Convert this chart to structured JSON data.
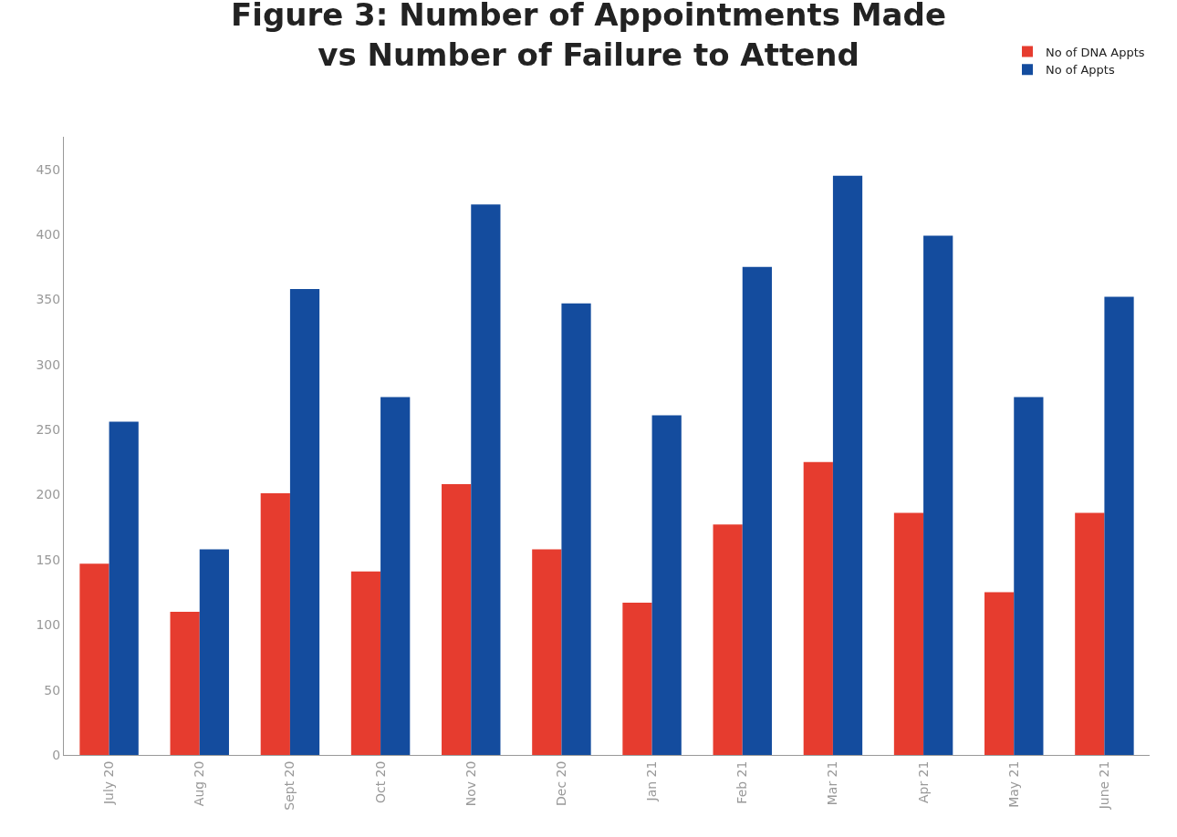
{
  "chart_data": {
    "type": "bar",
    "title": "Figure 3: Number of Appointments Made\nvs Number of Failure to Attend",
    "categories": [
      "July 20",
      "Aug 20",
      "Sept 20",
      "Oct 20",
      "Nov 20",
      "Dec 20",
      "Jan 21",
      "Feb 21",
      "Mar 21",
      "Apr 21",
      "May 21",
      "June 21"
    ],
    "series": [
      {
        "name": "No of DNA Appts",
        "color": "#e63c2f",
        "values": [
          147,
          110,
          201,
          141,
          208,
          158,
          117,
          177,
          225,
          186,
          125,
          186
        ]
      },
      {
        "name": "No of Appts",
        "color": "#144c9e",
        "values": [
          256,
          158,
          358,
          275,
          423,
          347,
          261,
          375,
          445,
          399,
          275,
          352
        ]
      }
    ],
    "ylim": [
      0,
      475
    ],
    "yticks": [
      0,
      50,
      100,
      150,
      200,
      250,
      300,
      350,
      400,
      450
    ],
    "legend": "top right"
  }
}
